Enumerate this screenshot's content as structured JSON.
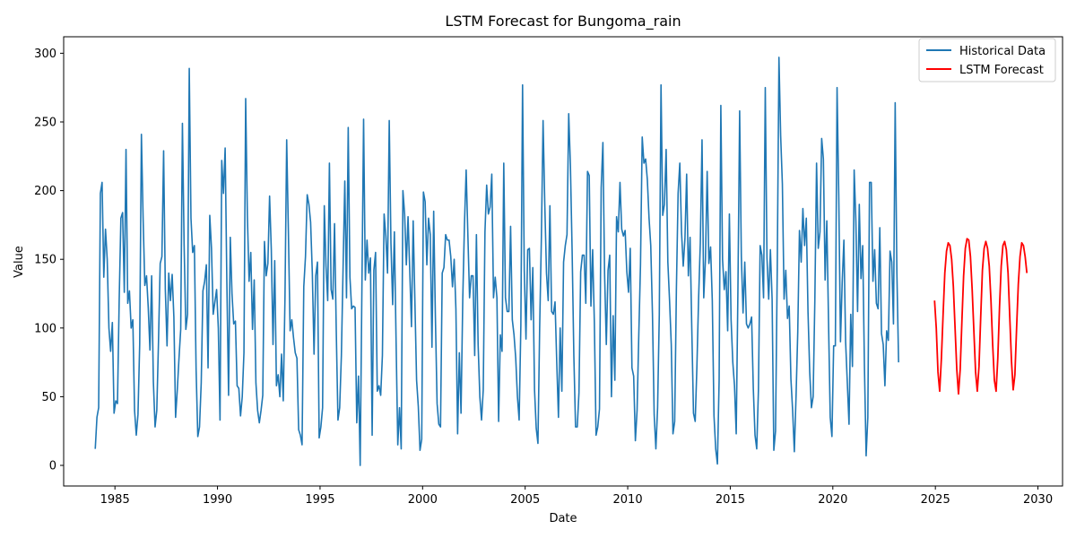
{
  "chart_data": {
    "type": "line",
    "title": "LSTM Forecast for Bungoma_rain",
    "xlabel": "Date",
    "ylabel": "Value",
    "xlim": [
      1982.5,
      2031.2
    ],
    "ylim": [
      -15,
      312
    ],
    "x_ticks": [
      1985,
      1990,
      1995,
      2000,
      2005,
      2010,
      2015,
      2020,
      2025,
      2030
    ],
    "y_ticks": [
      0,
      50,
      100,
      150,
      200,
      250,
      300
    ],
    "legend_position": "top-right",
    "grid": false,
    "series": [
      {
        "name": "Historical Data",
        "color": "#1f77b4",
        "x_start": 1984.04,
        "x_step": 0.0833333,
        "values": [
          12,
          35,
          42,
          198,
          206,
          137,
          172,
          150,
          100,
          83,
          104,
          38,
          47,
          45,
          120,
          180,
          184,
          126,
          230,
          118,
          127,
          100,
          106,
          40,
          22,
          37,
          88,
          241,
          180,
          131,
          138,
          115,
          84,
          138,
          61,
          28,
          40,
          90,
          147,
          152,
          229,
          128,
          87,
          140,
          120,
          139,
          108,
          35,
          55,
          78,
          99,
          249,
          160,
          99,
          110,
          289,
          180,
          155,
          160,
          70,
          21,
          28,
          60,
          127,
          134,
          146,
          71,
          182,
          158,
          110,
          119,
          128,
          100,
          33,
          222,
          198,
          231,
          133,
          51,
          166,
          125,
          103,
          105,
          58,
          56,
          36,
          50,
          82,
          267,
          182,
          134,
          155,
          99,
          135,
          60,
          40,
          31,
          40,
          51,
          163,
          138,
          147,
          196,
          157,
          88,
          149,
          58,
          66,
          50,
          81,
          47,
          122,
          237,
          170,
          98,
          106,
          93,
          82,
          78,
          26,
          22,
          15,
          130,
          152,
          197,
          190,
          177,
          140,
          81,
          138,
          148,
          20,
          28,
          42,
          189,
          145,
          120,
          220,
          128,
          121,
          176,
          98,
          33,
          42,
          80,
          144,
          207,
          122,
          246,
          137,
          114,
          116,
          115,
          31,
          65,
          0,
          128,
          252,
          135,
          164,
          140,
          151,
          22,
          142,
          155,
          54,
          58,
          51,
          80,
          183,
          167,
          140,
          251,
          162,
          117,
          170,
          91,
          15,
          42,
          12,
          200,
          183,
          146,
          181,
          142,
          101,
          178,
          120,
          62,
          43,
          11,
          19,
          199,
          192,
          146,
          180,
          168,
          86,
          185,
          108,
          45,
          30,
          28,
          140,
          144,
          168,
          164,
          164,
          152,
          130,
          150,
          114,
          23,
          82,
          38,
          120,
          175,
          215,
          168,
          122,
          138,
          138,
          80,
          168,
          88,
          50,
          33,
          55,
          170,
          204,
          183,
          188,
          212,
          122,
          137,
          122,
          32,
          95,
          83,
          220,
          122,
          112,
          112,
          174,
          106,
          95,
          78,
          50,
          33,
          102,
          277,
          142,
          92,
          157,
          158,
          106,
          144,
          55,
          27,
          16,
          100,
          165,
          251,
          190,
          140,
          120,
          189,
          112,
          110,
          119,
          75,
          35,
          100,
          54,
          148,
          160,
          168,
          256,
          218,
          156,
          80,
          28,
          28,
          53,
          141,
          153,
          153,
          118,
          214,
          211,
          116,
          157,
          104,
          22,
          28,
          41,
          202,
          235,
          139,
          88,
          142,
          153,
          50,
          109,
          62,
          181,
          170,
          206,
          172,
          167,
          171,
          141,
          126,
          158,
          71,
          65,
          18,
          40,
          95,
          146,
          239,
          220,
          223,
          208,
          180,
          160,
          110,
          37,
          12,
          42,
          110,
          277,
          182,
          190,
          230,
          148,
          120,
          88,
          23,
          32,
          128,
          198,
          220,
          170,
          145,
          165,
          212,
          138,
          166,
          100,
          38,
          32,
          72,
          122,
          162,
          237,
          122,
          150,
          214,
          147,
          159,
          120,
          36,
          12,
          1,
          62,
          262,
          150,
          128,
          141,
          98,
          183,
          106,
          75,
          58,
          23,
          128,
          258,
          152,
          111,
          148,
          103,
          100,
          103,
          108,
          56,
          22,
          12,
          55,
          160,
          153,
          122,
          275,
          151,
          121,
          157,
          121,
          11,
          25,
          142,
          297,
          240,
          205,
          121,
          142,
          107,
          116,
          63,
          40,
          10,
          50,
          97,
          171,
          148,
          187,
          160,
          180,
          112,
          68,
          42,
          50,
          120,
          220,
          158,
          170,
          238,
          223,
          135,
          178,
          105,
          35,
          21,
          87,
          87,
          275,
          196,
          90,
          133,
          164,
          90,
          60,
          30,
          110,
          72,
          215,
          178,
          112,
          190,
          136,
          160,
          73,
          7,
          35,
          206,
          206,
          134,
          157,
          118,
          114,
          173,
          96,
          88,
          58,
          98,
          91,
          156,
          148,
          103,
          264,
          140,
          75
        ]
      },
      {
        "name": "LSTM Forecast",
        "color": "#ff0000",
        "x_start": 2024.96,
        "x_step": 0.0833333,
        "values": [
          120,
          100,
          68,
          54,
          78,
          110,
          140,
          156,
          162,
          160,
          150,
          130,
          100,
          70,
          52,
          70,
          105,
          138,
          158,
          165,
          164,
          152,
          128,
          98,
          68,
          54,
          72,
          108,
          142,
          158,
          163,
          158,
          145,
          120,
          88,
          62,
          54,
          78,
          115,
          145,
          160,
          163,
          157,
          140,
          108,
          76,
          55,
          66,
          100,
          132,
          152,
          162,
          160,
          152,
          140
        ]
      }
    ]
  }
}
